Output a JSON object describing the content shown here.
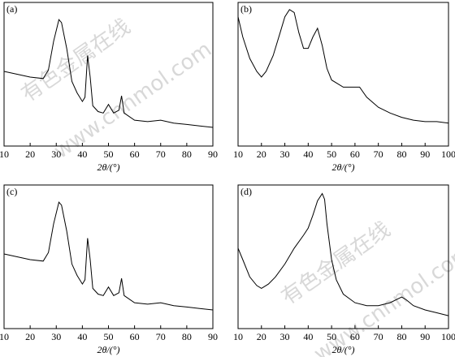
{
  "chart_data": [
    {
      "type": "line",
      "label": "(a)",
      "x_label": "2θ/(°)",
      "x": [
        10,
        15,
        20,
        25,
        27,
        29,
        31,
        32,
        34,
        36,
        38,
        40,
        41,
        42,
        43,
        44,
        46,
        48,
        50,
        52,
        54,
        55,
        56,
        60,
        65,
        70,
        75,
        80,
        85,
        90
      ],
      "series": [
        {
          "color": "#000000",
          "values": [
            52,
            50,
            48,
            47,
            53,
            73,
            88,
            86,
            68,
            45,
            37,
            31,
            34,
            63,
            48,
            28,
            24,
            23,
            29,
            23,
            25,
            35,
            23,
            18,
            17,
            18,
            16,
            15,
            14,
            13
          ]
        }
      ],
      "xlim": [
        10,
        90
      ],
      "xticks": [
        10,
        20,
        30,
        40,
        50,
        60,
        70,
        80,
        90
      ],
      "ylim": [
        0,
        100
      ]
    },
    {
      "type": "line",
      "label": "(b)",
      "x_label": "2θ/(°)",
      "x": [
        10,
        12,
        15,
        18,
        20,
        22,
        25,
        28,
        30,
        32,
        34,
        36,
        38,
        40,
        42,
        44,
        46,
        48,
        50,
        55,
        60,
        62,
        65,
        70,
        75,
        80,
        85,
        90,
        95,
        100
      ],
      "series": [
        {
          "color": "#000000",
          "values": [
            90,
            76,
            61,
            52,
            48,
            52,
            63,
            79,
            90,
            95,
            93,
            79,
            68,
            68,
            76,
            82,
            70,
            54,
            46,
            41,
            41,
            41,
            34,
            27,
            23,
            20,
            18,
            17,
            17,
            16
          ]
        }
      ],
      "xlim": [
        10,
        100
      ],
      "xticks": [
        10,
        20,
        30,
        40,
        50,
        60,
        70,
        80,
        90,
        100
      ],
      "ylim": [
        0,
        100
      ]
    },
    {
      "type": "line",
      "label": "(c)",
      "x_label": "2θ/(°)",
      "x": [
        10,
        15,
        20,
        25,
        27,
        29,
        31,
        32,
        34,
        36,
        38,
        40,
        41,
        42,
        43,
        44,
        46,
        48,
        50,
        52,
        54,
        55,
        56,
        60,
        65,
        70,
        75,
        80,
        85,
        90
      ],
      "series": [
        {
          "color": "#000000",
          "values": [
            52,
            50,
            48,
            47,
            53,
            73,
            88,
            86,
            68,
            45,
            37,
            31,
            34,
            63,
            48,
            28,
            24,
            23,
            29,
            23,
            25,
            35,
            23,
            18,
            17,
            18,
            16,
            15,
            14,
            13
          ]
        }
      ],
      "xlim": [
        10,
        90
      ],
      "xticks": [
        10,
        20,
        30,
        40,
        50,
        60,
        70,
        80,
        90
      ],
      "ylim": [
        0,
        100
      ]
    },
    {
      "type": "line",
      "label": "(d)",
      "x_label": "2θ/(°)",
      "x": [
        10,
        12,
        15,
        18,
        20,
        23,
        26,
        30,
        34,
        38,
        40,
        42,
        44,
        46,
        47,
        48,
        50,
        52,
        55,
        60,
        65,
        70,
        75,
        80,
        82,
        85,
        90,
        95,
        100
      ],
      "series": [
        {
          "color": "#000000",
          "values": [
            56,
            48,
            36,
            30,
            28,
            31,
            36,
            45,
            56,
            65,
            70,
            79,
            89,
            94,
            90,
            73,
            48,
            34,
            24,
            18,
            16,
            16,
            18,
            22,
            20,
            16,
            13,
            11,
            9
          ]
        }
      ],
      "xlim": [
        10,
        100
      ],
      "xticks": [
        10,
        20,
        30,
        40,
        50,
        60,
        70,
        80,
        90,
        100
      ],
      "ylim": [
        0,
        100
      ]
    }
  ],
  "watermark": [
    "有色金属在线",
    "www.cnnmol.com"
  ]
}
